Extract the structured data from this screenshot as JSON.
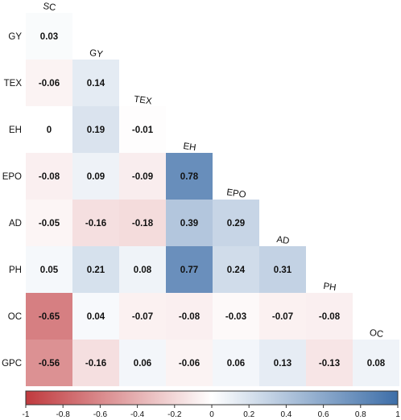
{
  "chart_data": {
    "type": "heatmap",
    "variables": [
      "SC",
      "GY",
      "TEX",
      "EH",
      "EPO",
      "AD",
      "PH",
      "OC",
      "GPC"
    ],
    "row_labels": [
      "GY",
      "TEX",
      "EH",
      "EPO",
      "AD",
      "PH",
      "OC",
      "GPC"
    ],
    "col_labels": [
      "SC",
      "GY",
      "TEX",
      "EH",
      "EPO",
      "AD",
      "PH",
      "OC"
    ],
    "matrix": [
      [
        0.03
      ],
      [
        -0.06,
        0.14
      ],
      [
        0,
        0.19,
        -0.01
      ],
      [
        -0.08,
        0.09,
        -0.09,
        0.78
      ],
      [
        -0.05,
        -0.16,
        -0.18,
        0.39,
        0.29
      ],
      [
        0.05,
        0.21,
        0.08,
        0.77,
        0.24,
        0.31
      ],
      [
        -0.65,
        0.04,
        -0.07,
        -0.08,
        -0.03,
        -0.07,
        -0.08
      ],
      [
        -0.56,
        -0.16,
        0.06,
        -0.06,
        0.06,
        0.13,
        -0.13,
        0.08
      ]
    ],
    "matrix_display": [
      [
        "0.03"
      ],
      [
        "-0.06",
        "0.14"
      ],
      [
        "0",
        "0.19",
        "-0.01"
      ],
      [
        "-0.08",
        "0.09",
        "-0.09",
        "0.78"
      ],
      [
        "-0.05",
        "-0.16",
        "-0.18",
        "0.39",
        "0.29"
      ],
      [
        "0.05",
        "0.21",
        "0.08",
        "0.77",
        "0.24",
        "0.31"
      ],
      [
        "-0.65",
        "0.04",
        "-0.07",
        "-0.08",
        "-0.03",
        "-0.07",
        "-0.08"
      ],
      [
        "-0.56",
        "-0.16",
        "0.06",
        "-0.06",
        "0.06",
        "0.13",
        "-0.13",
        "0.08"
      ]
    ],
    "colorbar": {
      "range": [
        -1,
        1
      ],
      "ticks": [
        "-1",
        "-0.8",
        "-0.6",
        "-0.4",
        "-0.2",
        "0",
        "0.2",
        "0.4",
        "0.6",
        "0.8",
        "1"
      ],
      "colors": {
        "negative": "#c03a3e",
        "neutral": "#ffffff",
        "positive": "#3d6ea8"
      }
    },
    "title": "",
    "grid": false
  }
}
